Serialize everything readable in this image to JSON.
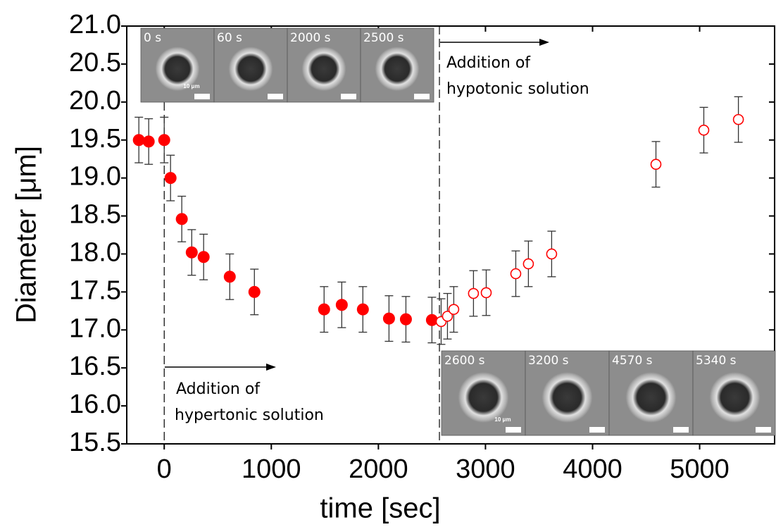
{
  "chart_data": {
    "type": "scatter",
    "x_label": "time [sec]",
    "y_label": "Diameter [μm]",
    "xlim": [
      -350,
      5700
    ],
    "ylim": [
      15.5,
      21.0
    ],
    "xticks": [
      0,
      1000,
      2000,
      3000,
      4000,
      5000
    ],
    "yticks": [
      15.5,
      {
        "value": 16,
        "label": "16.0"
      },
      16.5,
      {
        "value": 17,
        "label": "17.0"
      },
      17.5,
      {
        "value": 18,
        "label": "18.0"
      },
      18.5,
      {
        "value": 19,
        "label": "19.0"
      },
      19.5,
      {
        "value": 20,
        "label": "20.0"
      },
      20.5,
      {
        "value": 21,
        "label": "21.0"
      }
    ],
    "reference_lines": [
      0,
      2570
    ],
    "series": [
      {
        "color": "#ff0000",
        "marker": "filled",
        "x": [
          -237,
          -145,
          0,
          59,
          164,
          257,
          368,
          612,
          842,
          1493,
          1658,
          1855,
          2099,
          2257,
          2500
        ],
        "values": [
          19.5,
          19.48,
          19.5,
          19.0,
          18.46,
          18.02,
          17.96,
          17.7,
          17.5,
          17.27,
          17.33,
          17.27,
          17.15,
          17.14,
          17.13
        ],
        "errors": [
          0.3,
          0.3,
          0.3,
          0.3,
          0.3,
          0.3,
          0.3,
          0.3,
          0.3,
          0.3,
          0.3,
          0.3,
          0.3,
          0.3,
          0.3
        ]
      },
      {
        "color": "#ff0000",
        "marker": "open",
        "x": [
          2586,
          2645,
          2704,
          2888,
          3007,
          3283,
          3401,
          3618,
          4592,
          5039,
          5362
        ],
        "values": [
          17.11,
          17.18,
          17.27,
          17.48,
          17.49,
          17.74,
          17.87,
          18.0,
          19.18,
          19.63,
          19.77
        ],
        "errors": [
          0.3,
          0.3,
          0.3,
          0.3,
          0.3,
          0.3,
          0.3,
          0.3,
          0.3,
          0.3,
          0.3
        ]
      }
    ],
    "annotations": [
      {
        "lines": [
          "Addition of",
          "hypertonic solution"
        ]
      },
      {
        "lines": [
          "Addition of",
          "hypotonic solution"
        ]
      }
    ],
    "insets": [
      {
        "labels": [
          "0 s",
          "60 s",
          "2000 s",
          "2500 s"
        ],
        "scale_label": "10 μm"
      },
      {
        "labels": [
          "2600 s",
          "3200 s",
          "4570 s",
          "5340 s"
        ],
        "scale_label": "10 μm"
      }
    ]
  }
}
